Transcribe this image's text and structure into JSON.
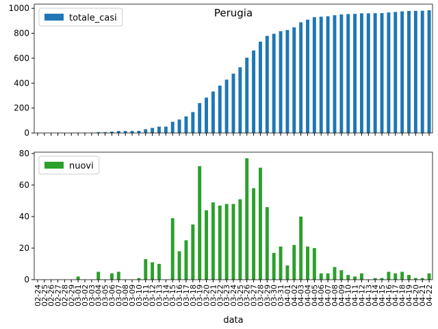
{
  "chart_data": [
    {
      "type": "bar",
      "title": "Perugia",
      "categories": [
        "02-24",
        "02-25",
        "02-26",
        "02-27",
        "02-28",
        "02-29",
        "03-01",
        "03-02",
        "03-03",
        "03-04",
        "03-05",
        "03-06",
        "03-07",
        "03-08",
        "03-09",
        "03-10",
        "03-11",
        "03-12",
        "03-13",
        "03-14",
        "03-15",
        "03-16",
        "03-17",
        "03-18",
        "03-19",
        "03-20",
        "03-21",
        "03-22",
        "03-23",
        "03-24",
        "03-25",
        "03-26",
        "03-27",
        "03-28",
        "03-29",
        "03-30",
        "03-31",
        "04-01",
        "04-02",
        "04-03",
        "04-04",
        "04-05",
        "04-06",
        "04-07",
        "04-08",
        "04-09",
        "04-10",
        "04-11",
        "04-12",
        "04-13",
        "04-14",
        "04-15",
        "04-16",
        "04-17",
        "04-18",
        "04-19",
        "04-20",
        "04-21",
        "04-22"
      ],
      "series": [
        {
          "name": "totale_casi",
          "color": "#1f77b4",
          "values": [
            0,
            0,
            0,
            0,
            0,
            0,
            2,
            2,
            2,
            7,
            7,
            11,
            16,
            16,
            16,
            17,
            30,
            41,
            51,
            51,
            90,
            108,
            133,
            168,
            240,
            284,
            333,
            380,
            428,
            476,
            527,
            604,
            662,
            733,
            779,
            796,
            817,
            826,
            848,
            888,
            909,
            929,
            933,
            937,
            945,
            951,
            954,
            956,
            960,
            960,
            961,
            962,
            967,
            971,
            976,
            979,
            980,
            981,
            985
          ]
        }
      ],
      "ylim": [
        0,
        1034
      ],
      "yticks": [
        0,
        200,
        400,
        600,
        800,
        1000
      ],
      "legend": "upper left"
    },
    {
      "type": "bar",
      "x_label": "data",
      "categories": [
        "02-24",
        "02-25",
        "02-26",
        "02-27",
        "02-28",
        "02-29",
        "03-01",
        "03-02",
        "03-03",
        "03-04",
        "03-05",
        "03-06",
        "03-07",
        "03-08",
        "03-09",
        "03-10",
        "03-11",
        "03-12",
        "03-13",
        "03-14",
        "03-15",
        "03-16",
        "03-17",
        "03-18",
        "03-19",
        "03-20",
        "03-21",
        "03-22",
        "03-23",
        "03-24",
        "03-25",
        "03-26",
        "03-27",
        "03-28",
        "03-29",
        "03-30",
        "03-31",
        "04-01",
        "04-02",
        "04-03",
        "04-04",
        "04-05",
        "04-06",
        "04-07",
        "04-08",
        "04-09",
        "04-10",
        "04-11",
        "04-12",
        "04-13",
        "04-14",
        "04-15",
        "04-16",
        "04-17",
        "04-18",
        "04-19",
        "04-20",
        "04-21",
        "04-22"
      ],
      "series": [
        {
          "name": "nuovi",
          "color": "#2ca02c",
          "values": [
            0,
            0,
            0,
            0,
            0,
            0,
            2,
            0,
            0,
            5,
            0,
            4,
            5,
            0,
            0,
            1,
            13,
            11,
            10,
            0,
            39,
            18,
            25,
            35,
            72,
            44,
            49,
            47,
            48,
            48,
            51,
            77,
            58,
            71,
            46,
            17,
            21,
            9,
            22,
            40,
            21,
            20,
            4,
            4,
            8,
            6,
            3,
            2,
            4,
            0,
            1,
            1,
            5,
            4,
            5,
            3,
            1,
            1,
            4
          ]
        }
      ],
      "ylim": [
        0,
        80.85
      ],
      "yticks": [
        0,
        20,
        40,
        60,
        80
      ],
      "legend": "upper left"
    }
  ]
}
